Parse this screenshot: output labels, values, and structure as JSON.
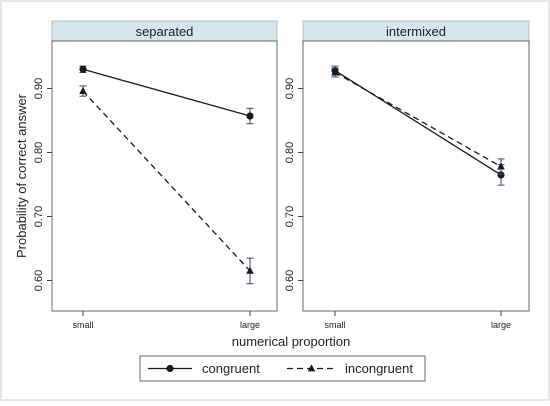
{
  "chart_data": {
    "type": "line",
    "ylabel": "Probability of correct answer",
    "xlabel": "numerical proportion",
    "categories": [
      "small",
      "large"
    ],
    "ylim": [
      0.56,
      0.98
    ],
    "y_ticks": [
      0.6,
      0.7,
      0.8,
      0.9
    ],
    "y_tick_labels": [
      "0.60",
      "0.70",
      "0.80",
      "0.90"
    ],
    "legend_position": "bottom",
    "panels": [
      {
        "title": "separated",
        "series": [
          {
            "name": "congruent",
            "values": [
              0.93,
              0.857
            ],
            "ci_low": [
              0.925,
              0.845
            ],
            "ci_high": [
              0.935,
              0.869
            ]
          },
          {
            "name": "incongruent",
            "values": [
              0.896,
              0.615
            ],
            "ci_low": [
              0.888,
              0.595
            ],
            "ci_high": [
              0.904,
              0.635
            ]
          }
        ]
      },
      {
        "title": "intermixed",
        "series": [
          {
            "name": "congruent",
            "values": [
              0.928,
              0.765
            ],
            "ci_low": [
              0.921,
              0.749
            ],
            "ci_high": [
              0.935,
              0.781
            ]
          },
          {
            "name": "incongruent",
            "values": [
              0.925,
              0.778
            ],
            "ci_low": [
              0.918,
              0.766
            ],
            "ci_high": [
              0.932,
              0.79
            ]
          }
        ]
      }
    ],
    "series_styles": [
      {
        "name": "congruent",
        "marker": "circle",
        "dash": "none",
        "color": "#1a1a1a"
      },
      {
        "name": "incongruent",
        "marker": "triangle",
        "dash": "dashed",
        "color": "#1a1a1a"
      }
    ],
    "colors": {
      "panel_header": "#d4e6ee",
      "ci_bar": "#2b4a7a",
      "line": "#1a1a1a"
    }
  }
}
